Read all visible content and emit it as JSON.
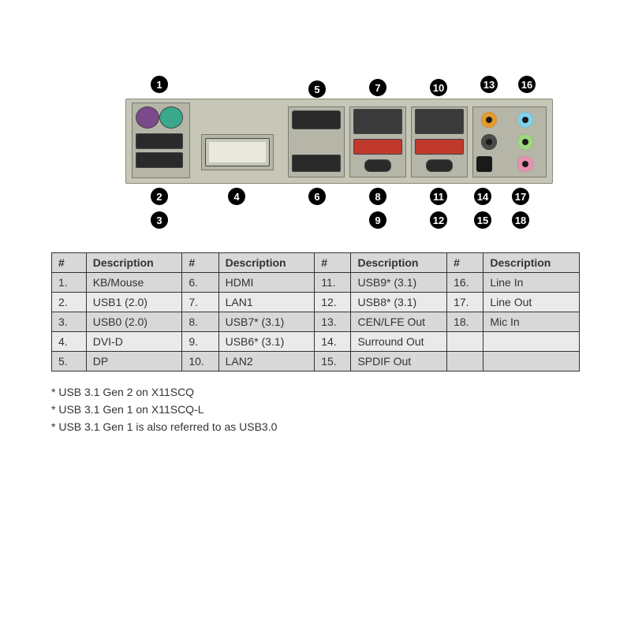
{
  "callouts": {
    "c1": "1",
    "c2": "2",
    "c3": "3",
    "c4": "4",
    "c5": "5",
    "c6": "6",
    "c7": "7",
    "c8": "8",
    "c9": "9",
    "c10": "10",
    "c11": "11",
    "c12": "12",
    "c13": "13",
    "c14": "14",
    "c15": "15",
    "c16": "16",
    "c17": "17",
    "c18": "18"
  },
  "table": {
    "headers": {
      "num": "#",
      "desc": "Description"
    },
    "rows": [
      {
        "n1": "1.",
        "d1": "KB/Mouse",
        "n2": "6.",
        "d2": "HDMI",
        "n3": "11.",
        "d3": "USB9* (3.1)",
        "n4": "16.",
        "d4": "Line In"
      },
      {
        "n1": "2.",
        "d1": "USB1 (2.0)",
        "n2": "7.",
        "d2": "LAN1",
        "n3": "12.",
        "d3": "USB8* (3.1)",
        "n4": "17.",
        "d4": "Line Out"
      },
      {
        "n1": "3.",
        "d1": "USB0 (2.0)",
        "n2": "8.",
        "d2": "USB7* (3.1)",
        "n3": "13.",
        "d3": "CEN/LFE Out",
        "n4": "18.",
        "d4": "Mic In"
      },
      {
        "n1": "4.",
        "d1": "DVI-D",
        "n2": "9.",
        "d2": "USB6* (3.1)",
        "n3": "14.",
        "d3": "Surround Out",
        "n4": "",
        "d4": ""
      },
      {
        "n1": "5.",
        "d1": "DP",
        "n2": "10.",
        "d2": "LAN2",
        "n3": "15.",
        "d3": "SPDIF Out",
        "n4": "",
        "d4": ""
      }
    ]
  },
  "footnotes": {
    "f1": "* USB 3.1 Gen 2 on X11SCQ",
    "f2": "* USB 3.1 Gen 1 on X11SCQ-L",
    "f3": "* USB 3.1 Gen 1 is also referred to as USB3.0"
  },
  "colors": {
    "audio_cenlfe": "#e39a2e",
    "audio_linein": "#7fd1e8",
    "audio_surround": "#4a4a4a",
    "audio_lineout": "#9fd97f",
    "audio_micin": "#e890b0"
  }
}
